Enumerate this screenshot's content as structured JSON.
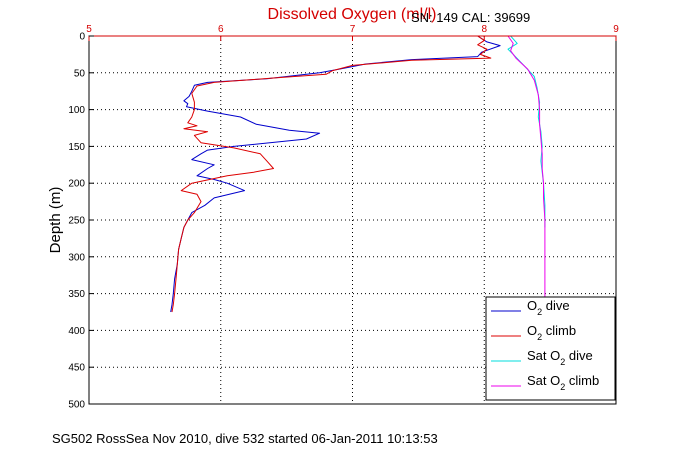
{
  "chart_data": {
    "type": "line",
    "title": "Dissolved Oxygen (ml/l)",
    "cal_text": "SN: 149  CAL: 39699",
    "ylabel": "Depth (m)",
    "footer": "SG502 RossSea Nov 2010, dive 532 started 06-Jan-2011 10:13:53",
    "xlim": [
      5,
      9
    ],
    "ylim": [
      0,
      500
    ],
    "y_reversed": true,
    "x_ticks": [
      5,
      6,
      7,
      8,
      9
    ],
    "y_ticks": [
      0,
      50,
      100,
      150,
      200,
      250,
      300,
      350,
      400,
      450,
      500
    ],
    "grid": true,
    "legend_position": "bottom-right",
    "colors": {
      "axis_top": "#d40000",
      "title": "#d40000"
    },
    "series": [
      {
        "name": "O2 dive",
        "legend_main": "O",
        "legend_sub": "2",
        "legend_rest": " dive",
        "color": "#0000cc",
        "points": [
          [
            7.95,
            0
          ],
          [
            8.02,
            8
          ],
          [
            8.12,
            13
          ],
          [
            7.98,
            22
          ],
          [
            7.95,
            28
          ],
          [
            7.45,
            32
          ],
          [
            7.1,
            38
          ],
          [
            6.9,
            45
          ],
          [
            6.75,
            50
          ],
          [
            6.35,
            58
          ],
          [
            5.9,
            63
          ],
          [
            5.8,
            67
          ],
          [
            5.78,
            75
          ],
          [
            5.76,
            82
          ],
          [
            5.72,
            88
          ],
          [
            5.75,
            92
          ],
          [
            5.74,
            96
          ],
          [
            5.9,
            102
          ],
          [
            6.15,
            110
          ],
          [
            6.27,
            120
          ],
          [
            6.52,
            128
          ],
          [
            6.75,
            132
          ],
          [
            6.65,
            140
          ],
          [
            6.1,
            150
          ],
          [
            5.9,
            155
          ],
          [
            5.85,
            160
          ],
          [
            5.78,
            168
          ],
          [
            5.95,
            175
          ],
          [
            5.9,
            180
          ],
          [
            5.82,
            190
          ],
          [
            5.95,
            195
          ],
          [
            6.05,
            200
          ],
          [
            6.18,
            210
          ],
          [
            5.95,
            220
          ],
          [
            5.88,
            230
          ],
          [
            5.78,
            240
          ],
          [
            5.75,
            250
          ],
          [
            5.72,
            260
          ],
          [
            5.7,
            275
          ],
          [
            5.68,
            290
          ],
          [
            5.67,
            310
          ],
          [
            5.65,
            330
          ],
          [
            5.64,
            350
          ],
          [
            5.63,
            365
          ],
          [
            5.62,
            375
          ]
        ]
      },
      {
        "name": "O2 climb",
        "legend_main": "O",
        "legend_sub": "2",
        "legend_rest": " climb",
        "color": "#dd0000",
        "points": [
          [
            7.95,
            0
          ],
          [
            8.0,
            6
          ],
          [
            7.95,
            12
          ],
          [
            8.02,
            18
          ],
          [
            7.97,
            25
          ],
          [
            8.05,
            30
          ],
          [
            7.45,
            33
          ],
          [
            7.0,
            40
          ],
          [
            6.85,
            47
          ],
          [
            6.8,
            52
          ],
          [
            6.4,
            57
          ],
          [
            5.95,
            63
          ],
          [
            5.82,
            68
          ],
          [
            5.78,
            78
          ],
          [
            5.8,
            90
          ],
          [
            5.8,
            100
          ],
          [
            5.78,
            110
          ],
          [
            5.75,
            118
          ],
          [
            5.82,
            122
          ],
          [
            5.72,
            126
          ],
          [
            5.9,
            130
          ],
          [
            5.8,
            135
          ],
          [
            5.85,
            145
          ],
          [
            6.1,
            152
          ],
          [
            6.3,
            160
          ],
          [
            6.35,
            170
          ],
          [
            6.4,
            180
          ],
          [
            6.25,
            185
          ],
          [
            6.05,
            190
          ],
          [
            5.78,
            200
          ],
          [
            5.7,
            210
          ],
          [
            5.82,
            215
          ],
          [
            5.85,
            225
          ],
          [
            5.8,
            240
          ],
          [
            5.75,
            250
          ],
          [
            5.72,
            260
          ],
          [
            5.7,
            275
          ],
          [
            5.68,
            290
          ],
          [
            5.67,
            310
          ],
          [
            5.66,
            330
          ],
          [
            5.65,
            350
          ],
          [
            5.64,
            365
          ],
          [
            5.63,
            375
          ]
        ]
      },
      {
        "name": "Sat O2 dive",
        "legend_main": "Sat O",
        "legend_sub": "2",
        "legend_rest": " dive",
        "color": "#00dddd",
        "points": [
          [
            8.2,
            0
          ],
          [
            8.25,
            10
          ],
          [
            8.18,
            18
          ],
          [
            8.22,
            25
          ],
          [
            8.3,
            40
          ],
          [
            8.38,
            55
          ],
          [
            8.4,
            70
          ],
          [
            8.42,
            90
          ],
          [
            8.41,
            110
          ],
          [
            8.43,
            130
          ],
          [
            8.44,
            150
          ],
          [
            8.43,
            170
          ],
          [
            8.45,
            200
          ],
          [
            8.46,
            230
          ],
          [
            8.46,
            260
          ]
        ]
      },
      {
        "name": "Sat O2 climb",
        "legend_main": "Sat O",
        "legend_sub": "2",
        "legend_rest": " climb",
        "color": "#ee00ee",
        "points": [
          [
            8.18,
            0
          ],
          [
            8.22,
            10
          ],
          [
            8.2,
            20
          ],
          [
            8.24,
            30
          ],
          [
            8.33,
            45
          ],
          [
            8.38,
            60
          ],
          [
            8.41,
            80
          ],
          [
            8.42,
            100
          ],
          [
            8.42,
            120
          ],
          [
            8.43,
            140
          ],
          [
            8.44,
            160
          ],
          [
            8.44,
            180
          ],
          [
            8.45,
            200
          ],
          [
            8.45,
            220
          ],
          [
            8.46,
            250
          ],
          [
            8.46,
            280
          ],
          [
            8.46,
            320
          ],
          [
            8.46,
            355
          ]
        ]
      }
    ]
  }
}
